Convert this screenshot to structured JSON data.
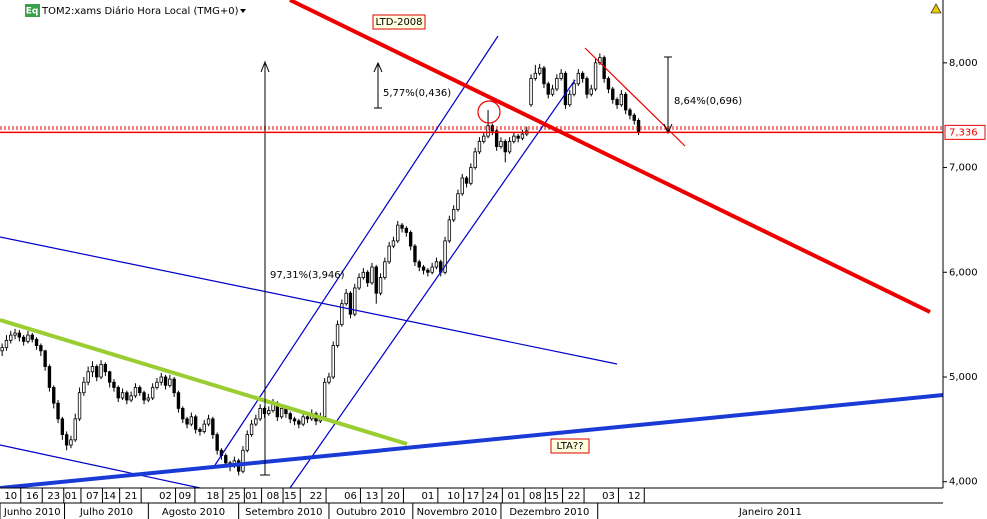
{
  "chart_data": {
    "type": "candlestick",
    "title": "TOM2:xams Diário Hora Local (TMG+0)",
    "icon_label": "Eq",
    "xlim": [
      -0.5,
      218.8
    ],
    "ylim": [
      3940,
      8600
    ],
    "yticks": [
      {
        "value": 4000,
        "label": "4,000"
      },
      {
        "value": 5000,
        "label": "5,000"
      },
      {
        "value": 6000,
        "label": "6,000"
      },
      {
        "value": 7000,
        "label": "7,000"
      },
      {
        "value": 8000,
        "label": "8,000"
      }
    ],
    "xticks": [
      {
        "value": 2,
        "label": "10"
      },
      {
        "value": 7,
        "label": "16"
      },
      {
        "value": 12,
        "label": "23"
      },
      {
        "value": 16,
        "label": "01"
      },
      {
        "value": 21,
        "label": "07"
      },
      {
        "value": 25,
        "label": "14"
      },
      {
        "value": 30,
        "label": "21"
      },
      {
        "value": 38,
        "label": "02"
      },
      {
        "value": 42.5,
        "label": "09"
      },
      {
        "value": 49,
        "label": "18"
      },
      {
        "value": 54,
        "label": "25"
      },
      {
        "value": 58,
        "label": "01"
      },
      {
        "value": 63,
        "label": "08"
      },
      {
        "value": 67,
        "label": "15"
      },
      {
        "value": 73,
        "label": "22"
      },
      {
        "value": 81,
        "label": "06"
      },
      {
        "value": 86,
        "label": "13"
      },
      {
        "value": 91,
        "label": "20"
      },
      {
        "value": 99,
        "label": "01"
      },
      {
        "value": 105,
        "label": "10"
      },
      {
        "value": 109.5,
        "label": "17"
      },
      {
        "value": 114,
        "label": "24"
      },
      {
        "value": 119,
        "label": "01"
      },
      {
        "value": 124,
        "label": "08"
      },
      {
        "value": 128,
        "label": "15"
      },
      {
        "value": 133,
        "label": "22"
      },
      {
        "value": 141,
        "label": "03"
      },
      {
        "value": 147,
        "label": "12"
      }
    ],
    "month_ticks": [
      {
        "value": -0.5,
        "label": "Junho 2010"
      },
      {
        "value": 14.5,
        "label": "Julho 2010"
      },
      {
        "value": 34,
        "label": "Agosto 2010"
      },
      {
        "value": 55,
        "label": "Setembro 2010"
      },
      {
        "value": 76,
        "label": "Outubro 2010"
      },
      {
        "value": 95.5,
        "label": "Novembro 2010"
      },
      {
        "value": 116,
        "label": "Dezembro 2010"
      },
      {
        "value": 138.5,
        "label": "Janeiro 2011"
      }
    ],
    "last_price": {
      "value": 7336,
      "label": "7,336"
    },
    "annotations": [
      "LTD-2008",
      "LTA??",
      "97,31%(3,946)",
      "5,77%(0,436)",
      "8,64%(0,696)"
    ],
    "ohlc": [
      [
        5250,
        5320,
        5200,
        5280
      ],
      [
        5280,
        5400,
        5250,
        5350
      ],
      [
        5350,
        5440,
        5320,
        5400
      ],
      [
        5400,
        5460,
        5360,
        5420
      ],
      [
        5420,
        5450,
        5340,
        5380
      ],
      [
        5380,
        5400,
        5300,
        5340
      ],
      [
        5340,
        5440,
        5320,
        5400
      ],
      [
        5400,
        5420,
        5330,
        5360
      ],
      [
        5360,
        5380,
        5260,
        5300
      ],
      [
        5300,
        5320,
        5200,
        5250
      ],
      [
        5250,
        5260,
        5060,
        5100
      ],
      [
        5100,
        5120,
        4860,
        4900
      ],
      [
        4900,
        4920,
        4700,
        4750
      ],
      [
        4750,
        4780,
        4560,
        4600
      ],
      [
        4600,
        4620,
        4400,
        4450
      ],
      [
        4450,
        4480,
        4300,
        4350
      ],
      [
        4350,
        4440,
        4320,
        4400
      ],
      [
        4400,
        4650,
        4380,
        4600
      ],
      [
        4600,
        4900,
        4580,
        4850
      ],
      [
        4850,
        5000,
        4820,
        4950
      ],
      [
        4950,
        5100,
        4920,
        5050
      ],
      [
        5050,
        5150,
        5000,
        5100
      ],
      [
        5100,
        5120,
        4960,
        5000
      ],
      [
        5000,
        5160,
        4980,
        5120
      ],
      [
        5120,
        5140,
        5010,
        5050
      ],
      [
        5050,
        5060,
        4900,
        4950
      ],
      [
        4950,
        4980,
        4860,
        4900
      ],
      [
        4900,
        4920,
        4760,
        4800
      ],
      [
        4800,
        4890,
        4780,
        4850
      ],
      [
        4850,
        4870,
        4740,
        4780
      ],
      [
        4780,
        4860,
        4760,
        4820
      ],
      [
        4820,
        4940,
        4800,
        4900
      ],
      [
        4900,
        4920,
        4820,
        4850
      ],
      [
        4850,
        4870,
        4740,
        4780
      ],
      [
        4780,
        4840,
        4760,
        4800
      ],
      [
        4800,
        4940,
        4780,
        4900
      ],
      [
        4900,
        4990,
        4880,
        4950
      ],
      [
        4950,
        5040,
        4920,
        5000
      ],
      [
        5000,
        5020,
        4880,
        4920
      ],
      [
        4920,
        5020,
        4900,
        4980
      ],
      [
        4980,
        5000,
        4810,
        4850
      ],
      [
        4850,
        4870,
        4660,
        4700
      ],
      [
        4700,
        4720,
        4560,
        4600
      ],
      [
        4600,
        4620,
        4510,
        4550
      ],
      [
        4550,
        4660,
        4530,
        4620
      ],
      [
        4620,
        4640,
        4460,
        4500
      ],
      [
        4500,
        4520,
        4440,
        4480
      ],
      [
        4480,
        4590,
        4460,
        4550
      ],
      [
        4550,
        4640,
        4530,
        4600
      ],
      [
        4600,
        4620,
        4410,
        4450
      ],
      [
        4450,
        4470,
        4260,
        4300
      ],
      [
        4300,
        4320,
        4210,
        4250
      ],
      [
        4250,
        4270,
        4140,
        4180
      ],
      [
        4180,
        4200,
        4100,
        4150
      ],
      [
        4150,
        4240,
        4130,
        4200
      ],
      [
        4200,
        4220,
        4060,
        4100
      ],
      [
        4100,
        4340,
        4080,
        4300
      ],
      [
        4300,
        4490,
        4280,
        4450
      ],
      [
        4450,
        4590,
        4430,
        4550
      ],
      [
        4550,
        4640,
        4530,
        4600
      ],
      [
        4600,
        4740,
        4580,
        4700
      ],
      [
        4700,
        4720,
        4610,
        4650
      ],
      [
        4650,
        4720,
        4630,
        4680
      ],
      [
        4680,
        4790,
        4660,
        4750
      ],
      [
        4750,
        4770,
        4580,
        4620
      ],
      [
        4620,
        4740,
        4600,
        4700
      ],
      [
        4700,
        4720,
        4610,
        4650
      ],
      [
        4650,
        4670,
        4560,
        4600
      ],
      [
        4600,
        4620,
        4540,
        4580
      ],
      [
        4580,
        4600,
        4510,
        4550
      ],
      [
        4550,
        4660,
        4530,
        4620
      ],
      [
        4620,
        4640,
        4560,
        4600
      ],
      [
        4600,
        4690,
        4580,
        4650
      ],
      [
        4650,
        4670,
        4540,
        4580
      ],
      [
        4580,
        4660,
        4560,
        4620
      ],
      [
        4620,
        4990,
        4600,
        4950
      ],
      [
        4950,
        5040,
        4930,
        5000
      ],
      [
        5000,
        5340,
        4980,
        5300
      ],
      [
        5300,
        5540,
        5280,
        5500
      ],
      [
        5500,
        5740,
        5480,
        5700
      ],
      [
        5700,
        5840,
        5680,
        5800
      ],
      [
        5800,
        5820,
        5560,
        5600
      ],
      [
        5600,
        5890,
        5580,
        5850
      ],
      [
        5850,
        5990,
        5830,
        5950
      ],
      [
        5950,
        6040,
        5930,
        6000
      ],
      [
        6000,
        6020,
        5860,
        5900
      ],
      [
        5900,
        6090,
        5880,
        6050
      ],
      [
        6050,
        6070,
        5700,
        5800
      ],
      [
        5800,
        5990,
        5780,
        5950
      ],
      [
        5950,
        6140,
        5930,
        6100
      ],
      [
        6100,
        6290,
        6080,
        6250
      ],
      [
        6250,
        6340,
        6230,
        6300
      ],
      [
        6300,
        6490,
        6280,
        6450
      ],
      [
        6450,
        6470,
        6380,
        6420
      ],
      [
        6420,
        6440,
        6340,
        6380
      ],
      [
        6380,
        6400,
        6210,
        6250
      ],
      [
        6250,
        6270,
        6060,
        6100
      ],
      [
        6100,
        6120,
        6010,
        6050
      ],
      [
        6050,
        6070,
        5980,
        6020
      ],
      [
        6020,
        6040,
        5960,
        6000
      ],
      [
        6000,
        6090,
        5980,
        6050
      ],
      [
        6050,
        6140,
        6030,
        6100
      ],
      [
        6100,
        6120,
        5960,
        6000
      ],
      [
        6000,
        6340,
        5980,
        6300
      ],
      [
        6300,
        6540,
        6280,
        6500
      ],
      [
        6500,
        6640,
        6480,
        6600
      ],
      [
        6600,
        6790,
        6580,
        6750
      ],
      [
        6750,
        6940,
        6730,
        6900
      ],
      [
        6900,
        6920,
        6810,
        6850
      ],
      [
        6850,
        7040,
        6830,
        7000
      ],
      [
        7000,
        7190,
        6980,
        7150
      ],
      [
        7150,
        7290,
        7130,
        7250
      ],
      [
        7250,
        7340,
        7230,
        7300
      ],
      [
        7300,
        7550,
        7280,
        7400
      ],
      [
        7400,
        7420,
        7310,
        7350
      ],
      [
        7350,
        7370,
        7160,
        7200
      ],
      [
        7200,
        7290,
        7180,
        7250
      ],
      [
        7250,
        7270,
        7050,
        7150
      ],
      [
        7150,
        7290,
        7130,
        7250
      ],
      [
        7250,
        7340,
        7230,
        7300
      ],
      [
        7300,
        7320,
        7240,
        7280
      ],
      [
        7280,
        7360,
        7260,
        7320
      ],
      [
        7320,
        7390,
        7300,
        7350
      ],
      [
        7600,
        7890,
        7580,
        7850
      ],
      [
        7850,
        7980,
        7830,
        7900
      ],
      [
        7900,
        7990,
        7880,
        7950
      ],
      [
        7950,
        7970,
        7760,
        7800
      ],
      [
        7800,
        7820,
        7660,
        7700
      ],
      [
        7700,
        7790,
        7680,
        7750
      ],
      [
        7750,
        7890,
        7730,
        7850
      ],
      [
        7850,
        7940,
        7830,
        7900
      ],
      [
        7900,
        7920,
        7560,
        7600
      ],
      [
        7600,
        7740,
        7580,
        7700
      ],
      [
        7700,
        7840,
        7680,
        7800
      ],
      [
        7800,
        7940,
        7780,
        7900
      ],
      [
        7900,
        7920,
        7810,
        7850
      ],
      [
        7850,
        7870,
        7660,
        7700
      ],
      [
        7700,
        7790,
        7680,
        7750
      ],
      [
        7750,
        8040,
        7730,
        8000
      ],
      [
        8000,
        8090,
        7980,
        8050
      ],
      [
        8050,
        8070,
        7810,
        7850
      ],
      [
        7850,
        7870,
        7710,
        7750
      ],
      [
        7750,
        7770,
        7610,
        7650
      ],
      [
        7650,
        7670,
        7560,
        7600
      ],
      [
        7600,
        7740,
        7580,
        7700
      ],
      [
        7700,
        7720,
        7510,
        7550
      ],
      [
        7550,
        7570,
        7460,
        7500
      ],
      [
        7500,
        7520,
        7410,
        7450
      ],
      [
        7450,
        7470,
        7310,
        7336
      ]
    ]
  }
}
